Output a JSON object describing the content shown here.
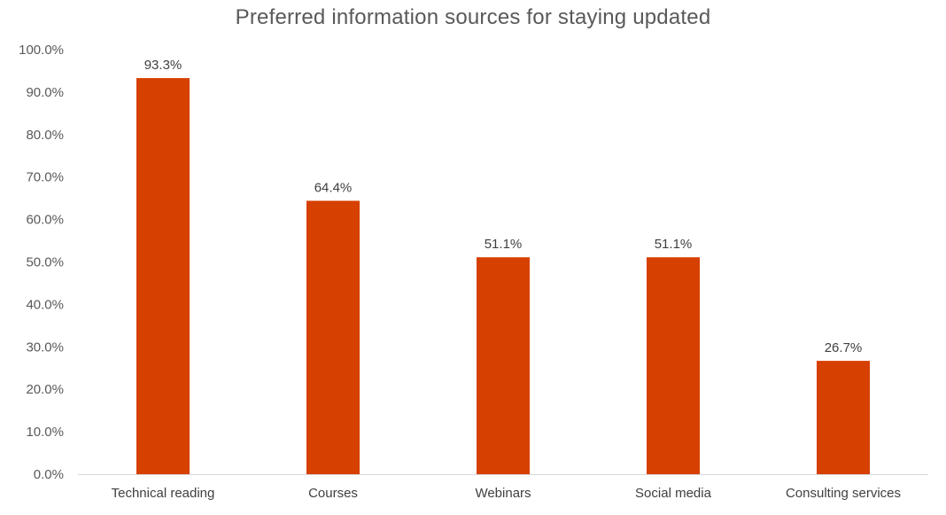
{
  "chart_data": {
    "type": "bar",
    "title": "Preferred information sources for staying updated",
    "xlabel": "",
    "ylabel": "",
    "categories": [
      "Technical reading",
      "Courses",
      "Webinars",
      "Social media",
      "Consulting services"
    ],
    "values": [
      93.3,
      64.4,
      51.1,
      51.1,
      26.7
    ],
    "data_labels": [
      "93.3%",
      "64.4%",
      "51.1%",
      "51.1%",
      "26.7%"
    ],
    "ylim": [
      0,
      100
    ],
    "y_ticks": [
      0,
      10,
      20,
      30,
      40,
      50,
      60,
      70,
      80,
      90,
      100
    ],
    "y_tick_labels": [
      "0.0%",
      "10.0%",
      "20.0%",
      "30.0%",
      "40.0%",
      "50.0%",
      "60.0%",
      "70.0%",
      "80.0%",
      "90.0%",
      "100.0%"
    ],
    "grid": false,
    "legend": "none",
    "bar_color": "#D64000",
    "axis_color": "#D9D9D9"
  }
}
